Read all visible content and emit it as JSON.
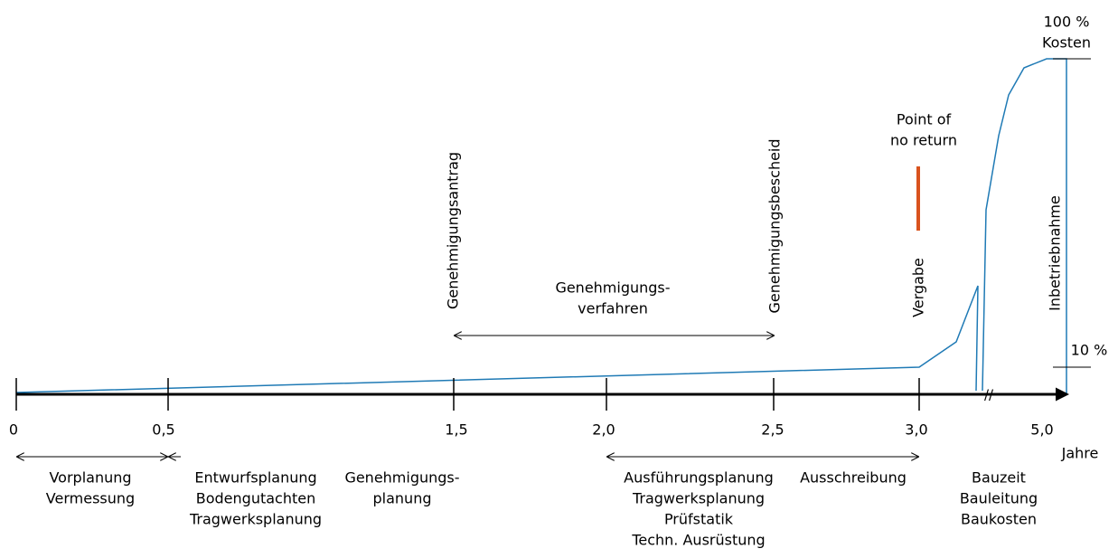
{
  "axis": {
    "ticks": [
      "0",
      "0,5",
      "1,5",
      "2,0",
      "2,5",
      "3,0",
      "5,0"
    ],
    "unit": "Jahre"
  },
  "milestones": [
    "Genehmigungsantrag",
    "Genehmigungsbescheid",
    "Vergabe",
    "Inbetriebnahme"
  ],
  "annotations": {
    "point_of_no_return": [
      "Point of",
      "no return"
    ],
    "cost_top": [
      "100 %",
      "Kosten"
    ],
    "cost_low": "10 %",
    "approval_process": [
      "Genehmigungs-",
      "verfahren"
    ]
  },
  "phases": [
    [
      "Vorplanung",
      "Vermessung"
    ],
    [
      "Entwurfsplanung",
      "Bodengutachten",
      "Tragwerksplanung"
    ],
    [
      "Genehmigungs-",
      "planung"
    ],
    [
      "Ausführungsplanung",
      "Tragwerksplanung",
      "Prüfstatik",
      "Techn. Ausrüstung"
    ],
    [
      "Ausschreibung"
    ],
    [
      "Bauzeit",
      "Bauleitung",
      "Baukosten"
    ]
  ]
}
